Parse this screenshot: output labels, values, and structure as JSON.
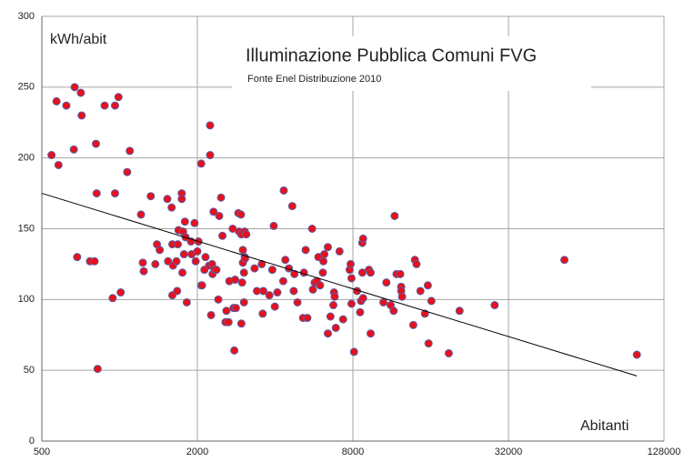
{
  "chart_data": {
    "type": "scatter",
    "title": "Illuminazione Pubblica Comuni FVG",
    "subtitle": "Fonte Enel Distribuzione 2010",
    "y_label": "kWh/abit",
    "x_label": "Abitanti",
    "xlog": true,
    "grid": true,
    "xlim": [
      500,
      128000
    ],
    "xticks": [
      500,
      2000,
      8000,
      32000,
      128000
    ],
    "ylim": [
      0,
      300
    ],
    "yticks": [
      0,
      50,
      100,
      150,
      200,
      250,
      300
    ],
    "marker_color": "#e8101a",
    "marker_edge": "#5b5ea6",
    "trendline": {
      "color": "#000000",
      "x": [
        500,
        100500
      ],
      "y": [
        175,
        46
      ]
    },
    "x": [
      545,
      570,
      580,
      622,
      670,
      665,
      685,
      708,
      713,
      768,
      800,
      810,
      815,
      822,
      875,
      940,
      960,
      960,
      990,
      1010,
      1070,
      1095,
      1210,
      1230,
      1240,
      1320,
      1375,
      1395,
      1430,
      1530,
      1540,
      1590,
      1600,
      1600,
      1610,
      1660,
      1670,
      1680,
      1690,
      1740,
      1740,
      1750,
      1760,
      1775,
      1790,
      1800,
      1820,
      1890,
      1900,
      1950,
      1970,
      2000,
      2020,
      2070,
      2070,
      2085,
      2130,
      2150,
      2220,
      2240,
      2240,
      2260,
      2280,
      2290,
      2310,
      2330,
      2370,
      2410,
      2430,
      2470,
      2500,
      2570,
      2590,
      2640,
      2660,
      2740,
      2760,
      2780,
      2800,
      2820,
      2880,
      2900,
      2950,
      2960,
      2960,
      2980,
      3000,
      3000,
      3030,
      3030,
      3050,
      3050,
      3060,
      3090,
      3330,
      3400,
      3550,
      3580,
      3600,
      3800,
      3900,
      3950,
      3990,
      4080,
      4300,
      4320,
      4380,
      4520,
      4660,
      4720,
      4750,
      4880,
      5130,
      5170,
      5250,
      5330,
      5560,
      5600,
      5690,
      5800,
      5880,
      5970,
      6120,
      6150,
      6200,
      6400,
      6400,
      6550,
      6720,
      6760,
      6800,
      6870,
      7100,
      7330,
      7770,
      7840,
      7900,
      7900,
      8080,
      8300,
      8530,
      8600,
      8700,
      8700,
      8760,
      8760,
      9230,
      9370,
      9370,
      10500,
      10780,
      11200,
      11500,
      11600,
      11800,
      12200,
      12300,
      12300,
      12400,
      13700,
      13900,
      14100,
      14600,
      15200,
      15600,
      15700,
      16100,
      18800,
      20700,
      28300,
      52700,
      100500
    ],
    "values": [
      202,
      240,
      195,
      237,
      250,
      206,
      130,
      246,
      230,
      127,
      127,
      210,
      175,
      51,
      237,
      101,
      237,
      175,
      243,
      105,
      190,
      205,
      160,
      126,
      120,
      173,
      125,
      139,
      135,
      171,
      127,
      165,
      139,
      103,
      124,
      127,
      106,
      139,
      149,
      175,
      171,
      119,
      148,
      132,
      155,
      144,
      98,
      141,
      132,
      154,
      127,
      134,
      141,
      196,
      110,
      110,
      121,
      130,
      124,
      223,
      202,
      89,
      125,
      118,
      162,
      121,
      121,
      100,
      159,
      172,
      145,
      84,
      92,
      84,
      113,
      150,
      94,
      64,
      114,
      94,
      161,
      148,
      160,
      146,
      83,
      112,
      126,
      135,
      119,
      98,
      130,
      148,
      129,
      146,
      122,
      106,
      125,
      90,
      106,
      103,
      121,
      152,
      95,
      105,
      113,
      177,
      128,
      122,
      166,
      106,
      118,
      98,
      87,
      119,
      135,
      87,
      150,
      107,
      112,
      113,
      130,
      110,
      119,
      127,
      132,
      137,
      76,
      88,
      96,
      105,
      102,
      80,
      134,
      86,
      121,
      125,
      115,
      97,
      63,
      106,
      91,
      99,
      119,
      140,
      143,
      101,
      121,
      119,
      76,
      98,
      112,
      96,
      92,
      159,
      118,
      118,
      109,
      106,
      102,
      82,
      128,
      125,
      106,
      90,
      110,
      69,
      99,
      62,
      92,
      96,
      128,
      61
    ]
  }
}
